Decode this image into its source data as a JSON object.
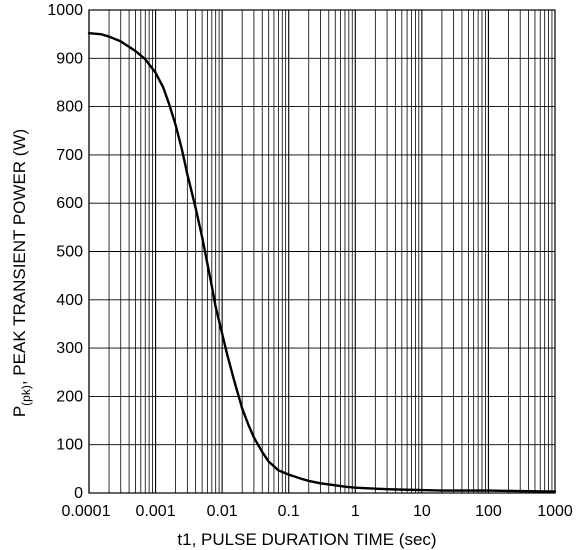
{
  "chart_data": {
    "type": "line",
    "title": "",
    "xlabel": "t1, PULSE DURATION TIME (sec)",
    "ylabel": {
      "prefix": "P",
      "subscript": "(pk)",
      "suffix": ",  PEAK TRANSIENT POWER (W)"
    },
    "xscale": "log",
    "xlim": [
      0.0001,
      1000
    ],
    "ylim": [
      0,
      1000
    ],
    "grid": true,
    "x_ticks": [
      {
        "value": 0.0001,
        "label": "0.0001"
      },
      {
        "value": 0.001,
        "label": "0.001"
      },
      {
        "value": 0.01,
        "label": "0.01"
      },
      {
        "value": 0.1,
        "label": "0.1"
      },
      {
        "value": 1,
        "label": "1"
      },
      {
        "value": 10,
        "label": "10"
      },
      {
        "value": 100,
        "label": "100"
      },
      {
        "value": 1000,
        "label": "1000"
      }
    ],
    "y_ticks": [
      {
        "value": 0,
        "label": "0"
      },
      {
        "value": 100,
        "label": "100"
      },
      {
        "value": 200,
        "label": "200"
      },
      {
        "value": 300,
        "label": "300"
      },
      {
        "value": 400,
        "label": "400"
      },
      {
        "value": 500,
        "label": "500"
      },
      {
        "value": 600,
        "label": "600"
      },
      {
        "value": 700,
        "label": "700"
      },
      {
        "value": 800,
        "label": "800"
      },
      {
        "value": 900,
        "label": "900"
      },
      {
        "value": 1000,
        "label": "1000"
      }
    ],
    "series": [
      {
        "color": "#000000",
        "x": [
          0.0001,
          0.00015,
          0.0002,
          0.0003,
          0.0005,
          0.0007,
          0.001,
          0.0013,
          0.0016,
          0.002,
          0.0025,
          0.003,
          0.004,
          0.005,
          0.006,
          0.007,
          0.008,
          0.01,
          0.012,
          0.015,
          0.02,
          0.025,
          0.03,
          0.04,
          0.05,
          0.07,
          0.1,
          0.15,
          0.2,
          0.3,
          0.5,
          0.7,
          1,
          2,
          3,
          5,
          10,
          20,
          50,
          100,
          300,
          1000
        ],
        "y": [
          952,
          950,
          945,
          935,
          915,
          898,
          870,
          840,
          805,
          762,
          710,
          660,
          590,
          530,
          475,
          428,
          385,
          330,
          285,
          235,
          175,
          140,
          115,
          85,
          65,
          47,
          38,
          30,
          25,
          20,
          16,
          13,
          11,
          9,
          8,
          7,
          6,
          5,
          5,
          5,
          4,
          3
        ]
      }
    ]
  }
}
